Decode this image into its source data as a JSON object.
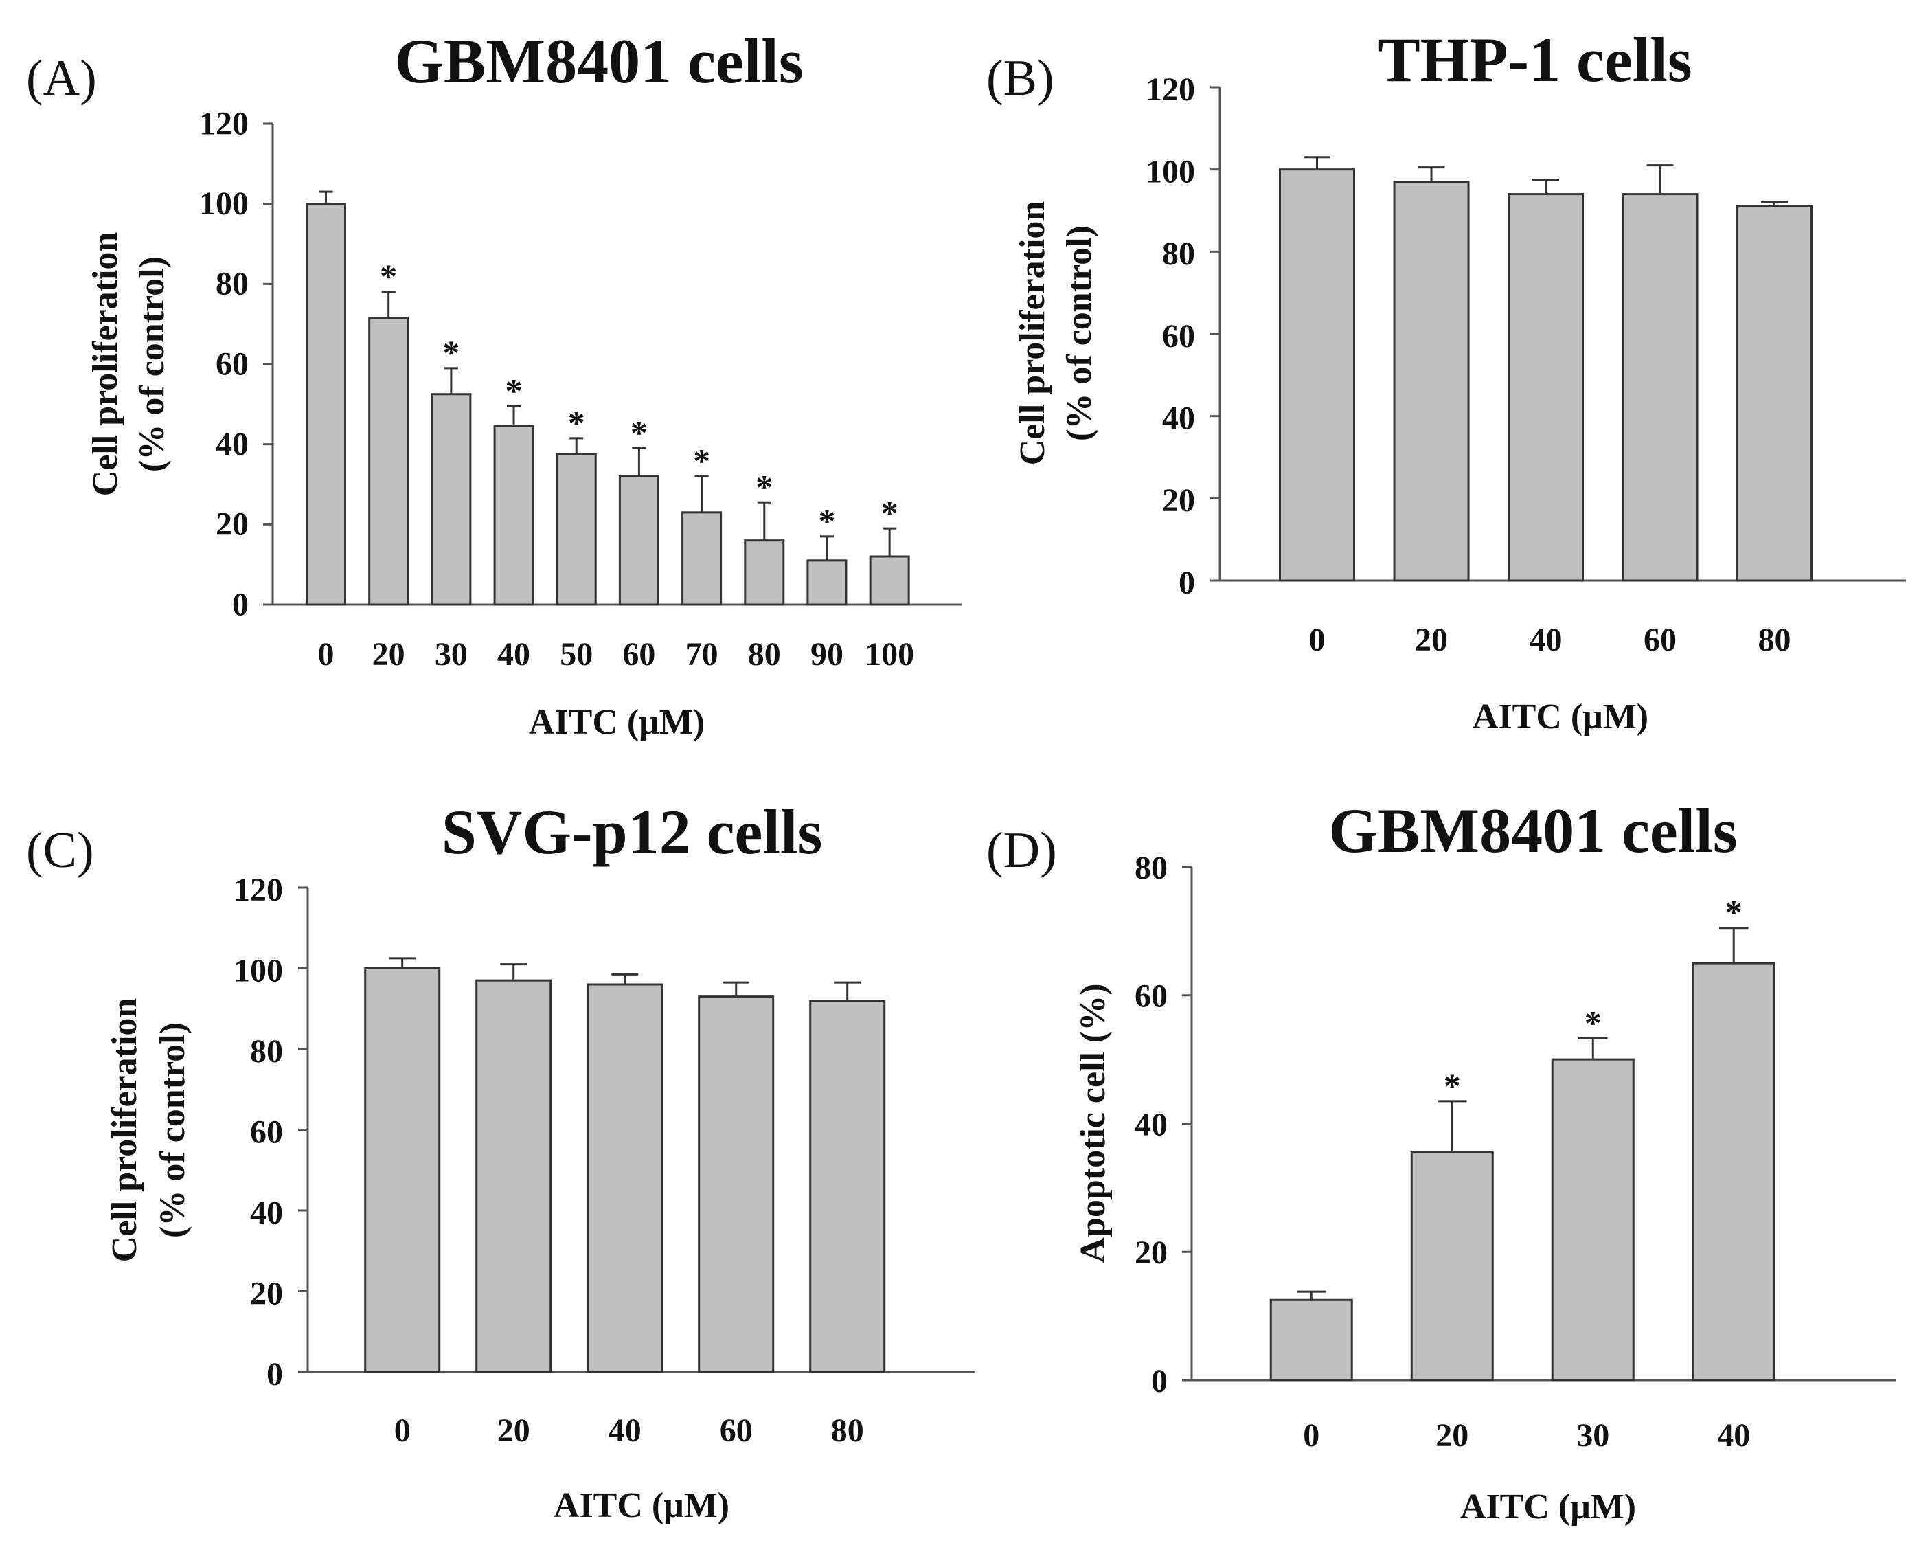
{
  "figure": {
    "colors": {
      "bar_fill": "#c0c0c0",
      "bar_stroke": "#333333",
      "axis": "#555555",
      "text": "#111111"
    }
  },
  "chart_data": [
    {
      "panel": "(A)",
      "type": "bar",
      "title": "GBM8401 cells",
      "xlabel": "AITC (μM)",
      "ylabel": "Cell proliferation",
      "ylabel2": "(% of control)",
      "categories": [
        "0",
        "20",
        "30",
        "40",
        "50",
        "60",
        "70",
        "80",
        "90",
        "100"
      ],
      "values": [
        100,
        71.5,
        52.5,
        44.5,
        37.5,
        32,
        23,
        16,
        11,
        12
      ],
      "errors": [
        3,
        6.5,
        6.5,
        5,
        4,
        7,
        9,
        9.5,
        6,
        7
      ],
      "significant": [
        false,
        true,
        true,
        true,
        true,
        true,
        true,
        true,
        true,
        true
      ],
      "significance_marker": "*",
      "ylim": [
        0,
        120
      ],
      "yticks": [
        "0",
        "20",
        "40",
        "60",
        "80",
        "100",
        "120"
      ],
      "grid": false,
      "legend": "none"
    },
    {
      "panel": "(B)",
      "type": "bar",
      "title": "THP-1 cells",
      "xlabel": "AITC (μM)",
      "ylabel": "Cell proliferation",
      "ylabel2": "(% of control)",
      "categories": [
        "0",
        "20",
        "40",
        "60",
        "80"
      ],
      "values": [
        100,
        97,
        94,
        94,
        91
      ],
      "errors": [
        3,
        3.5,
        3.5,
        7,
        1
      ],
      "significant": [
        false,
        false,
        false,
        false,
        false
      ],
      "significance_marker": "*",
      "ylim": [
        0,
        120
      ],
      "yticks": [
        "0",
        "20",
        "40",
        "60",
        "80",
        "100",
        "120"
      ],
      "grid": false,
      "legend": "none"
    },
    {
      "panel": "(C)",
      "type": "bar",
      "title": "SVG-p12 cells",
      "xlabel": "AITC (μM)",
      "ylabel": "Cell proliferation",
      "ylabel2": "(% of control)",
      "categories": [
        "0",
        "20",
        "40",
        "60",
        "80"
      ],
      "values": [
        100,
        97,
        96,
        93,
        92
      ],
      "errors": [
        2.5,
        4,
        2.5,
        3.5,
        4.5
      ],
      "significant": [
        false,
        false,
        false,
        false,
        false
      ],
      "significance_marker": "*",
      "ylim": [
        0,
        120
      ],
      "yticks": [
        "0",
        "20",
        "40",
        "60",
        "80",
        "100",
        "120"
      ],
      "grid": false,
      "legend": "none"
    },
    {
      "panel": "(D)",
      "type": "bar",
      "title": "GBM8401 cells",
      "xlabel": "AITC (μM)",
      "ylabel": "Apoptotic cell (%)",
      "ylabel2": "",
      "categories": [
        "0",
        "20",
        "30",
        "40"
      ],
      "values": [
        12.5,
        35.5,
        50,
        65
      ],
      "errors": [
        1.3,
        8,
        3.3,
        5.5
      ],
      "significant": [
        false,
        true,
        true,
        true
      ],
      "significance_marker": "*",
      "ylim": [
        0,
        80
      ],
      "yticks": [
        "0",
        "20",
        "40",
        "60",
        "80"
      ],
      "grid": false,
      "legend": "none"
    }
  ]
}
